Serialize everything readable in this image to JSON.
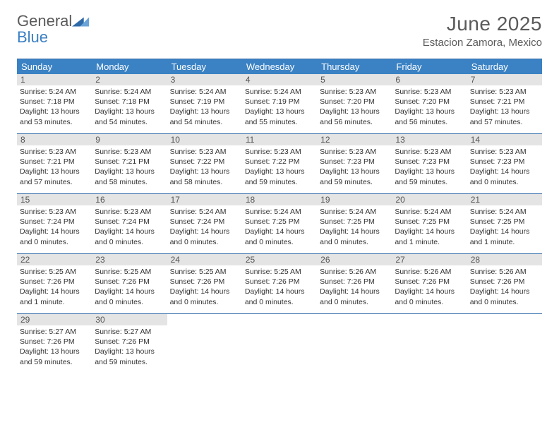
{
  "logo": {
    "line1": "General",
    "line2": "Blue"
  },
  "title": "June 2025",
  "subtitle": "Estacion Zamora, Mexico",
  "colors": {
    "header_bg": "#3b82c4",
    "header_text": "#ffffff",
    "rule": "#2f6aa8",
    "daynum_bg": "#e4e4e4",
    "body_text": "#333333",
    "title_text": "#5a5a5a",
    "logo_gray": "#5a5a5a",
    "logo_blue": "#3b7fc4"
  },
  "dow": [
    "Sunday",
    "Monday",
    "Tuesday",
    "Wednesday",
    "Thursday",
    "Friday",
    "Saturday"
  ],
  "days": [
    {
      "n": "1",
      "sr": "5:24 AM",
      "ss": "7:18 PM",
      "dl": "13 hours and 53 minutes."
    },
    {
      "n": "2",
      "sr": "5:24 AM",
      "ss": "7:18 PM",
      "dl": "13 hours and 54 minutes."
    },
    {
      "n": "3",
      "sr": "5:24 AM",
      "ss": "7:19 PM",
      "dl": "13 hours and 54 minutes."
    },
    {
      "n": "4",
      "sr": "5:24 AM",
      "ss": "7:19 PM",
      "dl": "13 hours and 55 minutes."
    },
    {
      "n": "5",
      "sr": "5:23 AM",
      "ss": "7:20 PM",
      "dl": "13 hours and 56 minutes."
    },
    {
      "n": "6",
      "sr": "5:23 AM",
      "ss": "7:20 PM",
      "dl": "13 hours and 56 minutes."
    },
    {
      "n": "7",
      "sr": "5:23 AM",
      "ss": "7:21 PM",
      "dl": "13 hours and 57 minutes."
    },
    {
      "n": "8",
      "sr": "5:23 AM",
      "ss": "7:21 PM",
      "dl": "13 hours and 57 minutes."
    },
    {
      "n": "9",
      "sr": "5:23 AM",
      "ss": "7:21 PM",
      "dl": "13 hours and 58 minutes."
    },
    {
      "n": "10",
      "sr": "5:23 AM",
      "ss": "7:22 PM",
      "dl": "13 hours and 58 minutes."
    },
    {
      "n": "11",
      "sr": "5:23 AM",
      "ss": "7:22 PM",
      "dl": "13 hours and 59 minutes."
    },
    {
      "n": "12",
      "sr": "5:23 AM",
      "ss": "7:23 PM",
      "dl": "13 hours and 59 minutes."
    },
    {
      "n": "13",
      "sr": "5:23 AM",
      "ss": "7:23 PM",
      "dl": "13 hours and 59 minutes."
    },
    {
      "n": "14",
      "sr": "5:23 AM",
      "ss": "7:23 PM",
      "dl": "14 hours and 0 minutes."
    },
    {
      "n": "15",
      "sr": "5:23 AM",
      "ss": "7:24 PM",
      "dl": "14 hours and 0 minutes."
    },
    {
      "n": "16",
      "sr": "5:23 AM",
      "ss": "7:24 PM",
      "dl": "14 hours and 0 minutes."
    },
    {
      "n": "17",
      "sr": "5:24 AM",
      "ss": "7:24 PM",
      "dl": "14 hours and 0 minutes."
    },
    {
      "n": "18",
      "sr": "5:24 AM",
      "ss": "7:25 PM",
      "dl": "14 hours and 0 minutes."
    },
    {
      "n": "19",
      "sr": "5:24 AM",
      "ss": "7:25 PM",
      "dl": "14 hours and 0 minutes."
    },
    {
      "n": "20",
      "sr": "5:24 AM",
      "ss": "7:25 PM",
      "dl": "14 hours and 1 minute."
    },
    {
      "n": "21",
      "sr": "5:24 AM",
      "ss": "7:25 PM",
      "dl": "14 hours and 1 minute."
    },
    {
      "n": "22",
      "sr": "5:25 AM",
      "ss": "7:26 PM",
      "dl": "14 hours and 1 minute."
    },
    {
      "n": "23",
      "sr": "5:25 AM",
      "ss": "7:26 PM",
      "dl": "14 hours and 0 minutes."
    },
    {
      "n": "24",
      "sr": "5:25 AM",
      "ss": "7:26 PM",
      "dl": "14 hours and 0 minutes."
    },
    {
      "n": "25",
      "sr": "5:25 AM",
      "ss": "7:26 PM",
      "dl": "14 hours and 0 minutes."
    },
    {
      "n": "26",
      "sr": "5:26 AM",
      "ss": "7:26 PM",
      "dl": "14 hours and 0 minutes."
    },
    {
      "n": "27",
      "sr": "5:26 AM",
      "ss": "7:26 PM",
      "dl": "14 hours and 0 minutes."
    },
    {
      "n": "28",
      "sr": "5:26 AM",
      "ss": "7:26 PM",
      "dl": "14 hours and 0 minutes."
    },
    {
      "n": "29",
      "sr": "5:27 AM",
      "ss": "7:26 PM",
      "dl": "13 hours and 59 minutes."
    },
    {
      "n": "30",
      "sr": "5:27 AM",
      "ss": "7:26 PM",
      "dl": "13 hours and 59 minutes."
    }
  ],
  "labels": {
    "sunrise": "Sunrise: ",
    "sunset": "Sunset: ",
    "daylight": "Daylight: "
  },
  "layout": {
    "cols": 7,
    "rows": 5,
    "start_offset": 0,
    "total_cells": 35
  }
}
